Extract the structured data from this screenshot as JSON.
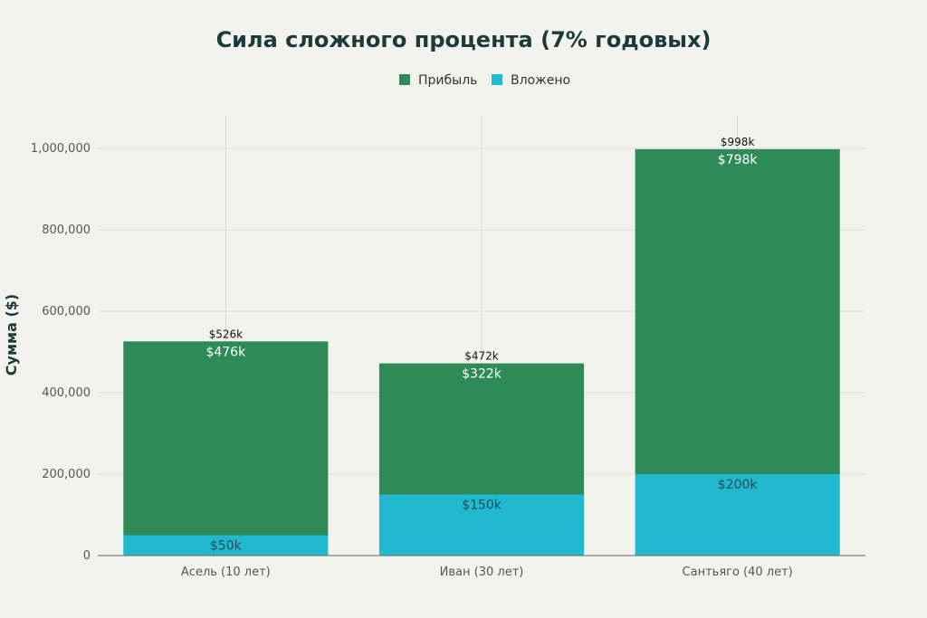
{
  "chart_data": {
    "type": "bar",
    "stacked": true,
    "title": "Сила сложного процента (7% годовых)",
    "xlabel": "",
    "ylabel": "Сумма ($)",
    "ylim": [
      0,
      1080000
    ],
    "yticks": [
      0,
      200000,
      400000,
      600000,
      800000,
      1000000
    ],
    "ytick_labels": [
      "0",
      "200,000",
      "400,000",
      "600,000",
      "800,000",
      "1,000,000"
    ],
    "grid": true,
    "legend": {
      "placement": "top-center",
      "entries": [
        "Прибыль",
        "Вложено"
      ]
    },
    "categories": [
      "Асель (10 лет)",
      "Иван (30 лет)",
      "Сантьяго (40 лет)"
    ],
    "series": [
      {
        "name": "Вложено",
        "color": "#22b8cf",
        "values": [
          50000,
          150000,
          200000
        ],
        "labels": [
          "$50k",
          "$150k",
          "$200k"
        ]
      },
      {
        "name": "Прибыль",
        "color": "#2e8b57",
        "values": [
          476000,
          322000,
          798000
        ],
        "labels": [
          "$476k",
          "$322k",
          "$798k"
        ]
      }
    ],
    "totals": [
      526000,
      472000,
      998000
    ],
    "total_labels": [
      "$526k",
      "$472k",
      "$998k"
    ]
  }
}
